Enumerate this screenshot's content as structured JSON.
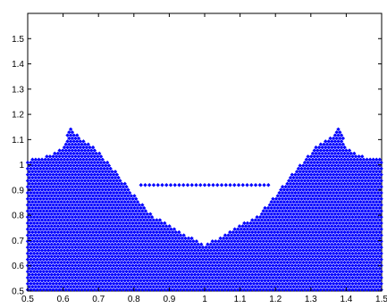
{
  "chart_data": {
    "type": "scatter",
    "title": "",
    "xlabel": "",
    "ylabel": "",
    "xlim": [
      0.5,
      1.5
    ],
    "ylim": [
      0.5,
      1.6
    ],
    "grid": false,
    "marker_color": "#0000ff",
    "marker_symbol": "diamond",
    "xticks": [
      "0.5",
      "0.6",
      "0.7",
      "0.8",
      "0.9",
      "1",
      "1.1",
      "1.2",
      "1.3",
      "1.4",
      "1.5"
    ],
    "yticks": [
      "0.5",
      "0.6",
      "0.7",
      "0.8",
      "0.9",
      "1",
      "1.1",
      "1.2",
      "1.3",
      "1.4",
      "1.5"
    ],
    "series": [
      {
        "profile_x": [
          0.5,
          0.55,
          0.6,
          0.62,
          0.65,
          0.68,
          0.7,
          0.75,
          0.8,
          0.85,
          0.9,
          0.95,
          1.0
        ],
        "profile_y": [
          1.02,
          1.03,
          1.07,
          1.15,
          1.1,
          1.08,
          1.05,
          0.97,
          0.88,
          0.8,
          0.76,
          0.72,
          0.68
        ],
        "triangle_top_y": 0.92,
        "triangle_x": [
          0.82,
          1.18
        ],
        "density": "dense diamond lattice, mirror symmetric about x = 1"
      }
    ]
  }
}
